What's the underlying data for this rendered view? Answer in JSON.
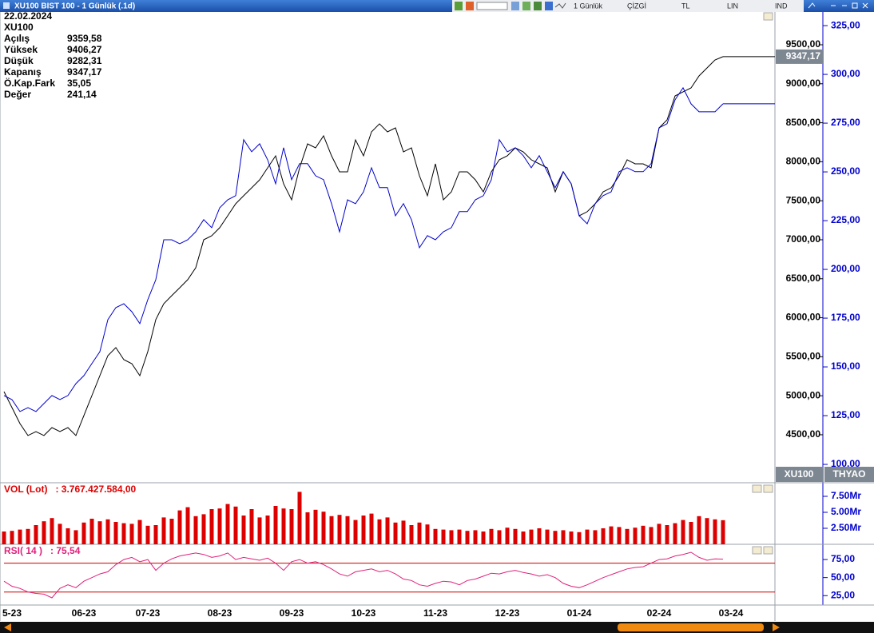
{
  "window": {
    "title": "XU100 BIST 100 - 1 Günlük (.1d)",
    "toolbar": [
      "1 Günlük",
      "ÇİZGİ",
      "TL",
      "LIN",
      "IND"
    ]
  },
  "info": {
    "date": "22.02.2024",
    "symbol": "XU100",
    "rows": [
      [
        "Açılış",
        "9359,58"
      ],
      [
        "Yüksek",
        "9406,27"
      ],
      [
        "Düşük",
        "9282,31"
      ],
      [
        "Kapanış",
        "9347,17"
      ],
      [
        "Ö.Kap.Fark",
        "35,05"
      ],
      [
        "Değer",
        "241,14"
      ]
    ]
  },
  "chart_data": [
    {
      "type": "line",
      "categories": [
        null,
        "5-23",
        null,
        null,
        null,
        null,
        null,
        null,
        null,
        null,
        "06-23",
        null,
        null,
        null,
        null,
        null,
        null,
        null,
        "07-23",
        null,
        null,
        null,
        null,
        null,
        null,
        null,
        null,
        "08-23",
        null,
        null,
        null,
        null,
        null,
        null,
        null,
        null,
        "09-23",
        null,
        null,
        null,
        null,
        null,
        null,
        null,
        null,
        "10-23",
        null,
        null,
        null,
        null,
        null,
        null,
        null,
        null,
        "11-23",
        null,
        null,
        null,
        null,
        null,
        null,
        null,
        null,
        "12-23",
        null,
        null,
        null,
        null,
        null,
        null,
        null,
        null,
        "01-24",
        null,
        null,
        null,
        null,
        null,
        null,
        null,
        null,
        null,
        "02-24",
        null,
        null,
        null,
        null,
        null,
        null,
        null,
        null,
        "03-24",
        null,
        null,
        null,
        null,
        null
      ],
      "series": [
        {
          "name": "XU100",
          "color": "#000000",
          "last_label": "9347,17",
          "values": [
            5053,
            4848,
            4643,
            4490,
            4541,
            4490,
            4592,
            4541,
            4592,
            4490,
            4746,
            5002,
            5258,
            5514,
            5617,
            5463,
            5412,
            5258,
            5566,
            5976,
            6180,
            6283,
            6385,
            6488,
            6641,
            7000,
            7051,
            7154,
            7307,
            7461,
            7564,
            7666,
            7768,
            7922,
            8076,
            7717,
            7512,
            7922,
            8229,
            8178,
            8332,
            8076,
            7871,
            7871,
            8281,
            8076,
            8383,
            8486,
            8383,
            8434,
            8127,
            8178,
            7820,
            7564,
            7973,
            7512,
            7615,
            7871,
            7871,
            7768,
            7615,
            7871,
            8025,
            8076,
            8178,
            8127,
            8025,
            7973,
            7922,
            7615,
            7871,
            7717,
            7307,
            7359,
            7461,
            7615,
            7666,
            7820,
            8025,
            7973,
            7973,
            7922,
            8434,
            8537,
            8844,
            8896,
            8947,
            9100,
            9203,
            9305,
            9347.17,
            null,
            null,
            null,
            null,
            null,
            null
          ]
        },
        {
          "name": "THYAO",
          "color": "#0000cc",
          "axis": "y2",
          "values": [
            135.3,
            133.2,
            127.1,
            129.1,
            127.1,
            131.2,
            135.3,
            133.2,
            135.3,
            141.4,
            145.5,
            151.7,
            157.8,
            174.2,
            180.4,
            182.4,
            178.3,
            172.2,
            184.5,
            194.7,
            215.2,
            215.2,
            213.2,
            215.2,
            219.3,
            225.5,
            221.4,
            231.6,
            235.7,
            237.8,
            266.5,
            260.3,
            264.4,
            256.2,
            243.9,
            262.4,
            246.0,
            254.2,
            254.2,
            248.0,
            246.0,
            233.7,
            219.3,
            235.7,
            233.7,
            239.8,
            252.1,
            241.9,
            241.9,
            227.5,
            233.7,
            225.5,
            211.1,
            217.3,
            215.2,
            219.3,
            221.4,
            229.6,
            229.6,
            235.7,
            237.8,
            246.0,
            266.5,
            260.3,
            262.4,
            258.3,
            252.1,
            258.3,
            250.1,
            241.9,
            250.1,
            243.9,
            227.5,
            223.4,
            233.7,
            237.8,
            239.8,
            250.1,
            252.1,
            250.1,
            250.1,
            254.2,
            272.6,
            274.7,
            287.0,
            293.1,
            284.9,
            280.8,
            280.8,
            280.8,
            284.9,
            null,
            null,
            null,
            null,
            null,
            null
          ]
        }
      ],
      "ylim": [
        3895,
        9920
      ],
      "yticks": [
        {
          "value": 4500,
          "label": "4500,00"
        },
        {
          "value": 5000,
          "label": "5000,00"
        },
        {
          "value": 5500,
          "label": "5500,00"
        },
        {
          "value": 6000,
          "label": "6000,00"
        },
        {
          "value": 6500,
          "label": "6500,00"
        },
        {
          "value": 7000,
          "label": "7000,00"
        },
        {
          "value": 7500,
          "label": "7500,00"
        },
        {
          "value": 8000,
          "label": "8000,00"
        },
        {
          "value": 8500,
          "label": "8500,00"
        },
        {
          "value": 9000,
          "label": "9000,00"
        },
        {
          "value": 9500,
          "label": "9500,00"
        }
      ],
      "y2lim": [
        91,
        332
      ],
      "y2ticks": [
        {
          "value": 100,
          "label": "100,00"
        },
        {
          "value": 125,
          "label": "125,00"
        },
        {
          "value": 150,
          "label": "150,00"
        },
        {
          "value": 175,
          "label": "175,00"
        },
        {
          "value": 200,
          "label": "200,00"
        },
        {
          "value": 225,
          "label": "225,00"
        },
        {
          "value": 250,
          "label": "250,00"
        },
        {
          "value": 275,
          "label": "275,00"
        },
        {
          "value": 300,
          "label": "300,00"
        },
        {
          "value": 325,
          "label": "325,00"
        }
      ]
    },
    {
      "type": "bar",
      "name": "VOL (Lot)",
      "current": ": 3.767.427.584,00",
      "color": "#dd0000",
      "values": [
        2.0,
        2.1,
        2.3,
        2.4,
        3.0,
        3.6,
        4.1,
        3.2,
        2.5,
        2.2,
        3.4,
        4.0,
        3.6,
        3.9,
        3.5,
        3.3,
        3.2,
        3.8,
        2.9,
        3.0,
        4.2,
        4.0,
        5.3,
        5.8,
        4.4,
        4.7,
        5.5,
        5.6,
        6.3,
        5.9,
        4.5,
        5.5,
        4.2,
        4.5,
        6.0,
        5.6,
        5.5,
        8.2,
        5.0,
        5.4,
        5.1,
        4.4,
        4.6,
        4.4,
        3.8,
        4.5,
        4.8,
        3.9,
        4.2,
        3.4,
        3.7,
        3.0,
        3.4,
        3.1,
        2.4,
        2.3,
        2.2,
        2.3,
        2.1,
        2.2,
        2.0,
        2.4,
        2.2,
        2.6,
        2.4,
        2.0,
        2.3,
        2.5,
        2.3,
        2.1,
        2.2,
        2.0,
        1.9,
        2.3,
        2.2,
        2.5,
        2.8,
        2.7,
        2.4,
        2.6,
        2.9,
        2.7,
        3.2,
        3.0,
        3.3,
        3.8,
        3.5,
        4.4,
        4.1,
        3.9,
        3.77,
        null,
        null,
        null,
        null,
        null,
        null
      ],
      "ylim": [
        0,
        9.5
      ],
      "yticks": [
        {
          "value": 2.5,
          "label": "2.50Mr"
        },
        {
          "value": 5,
          "label": "5.00Mr"
        },
        {
          "value": 7.5,
          "label": "7.50Mr"
        }
      ]
    },
    {
      "type": "line",
      "name": "RSI( 14 )",
      "current": ": 75,54",
      "color": "#e0207a",
      "values": [
        45,
        38,
        35,
        30,
        28,
        27,
        22,
        35,
        40,
        36,
        45,
        50,
        55,
        58,
        68,
        75,
        78,
        72,
        75,
        60,
        70,
        76,
        80,
        82,
        84,
        82,
        78,
        80,
        84,
        75,
        78,
        76,
        74,
        77,
        70,
        60,
        72,
        75,
        70,
        72,
        68,
        62,
        55,
        52,
        58,
        60,
        62,
        58,
        60,
        55,
        48,
        46,
        40,
        38,
        42,
        45,
        44,
        40,
        46,
        48,
        52,
        56,
        55,
        58,
        60,
        57,
        55,
        52,
        54,
        50,
        42,
        38,
        36,
        40,
        45,
        50,
        54,
        58,
        62,
        64,
        65,
        70,
        75,
        76,
        80,
        82,
        85,
        78,
        74,
        76,
        75.54,
        null,
        null,
        null,
        null,
        null,
        null
      ],
      "ylim": [
        12,
        95
      ],
      "yticks": [
        {
          "value": 25,
          "label": "25,00"
        },
        {
          "value": 50,
          "label": "50,00"
        },
        {
          "value": 75,
          "label": "75,00"
        }
      ],
      "levels": [
        70,
        30
      ],
      "level_color": "#cc0000"
    }
  ]
}
